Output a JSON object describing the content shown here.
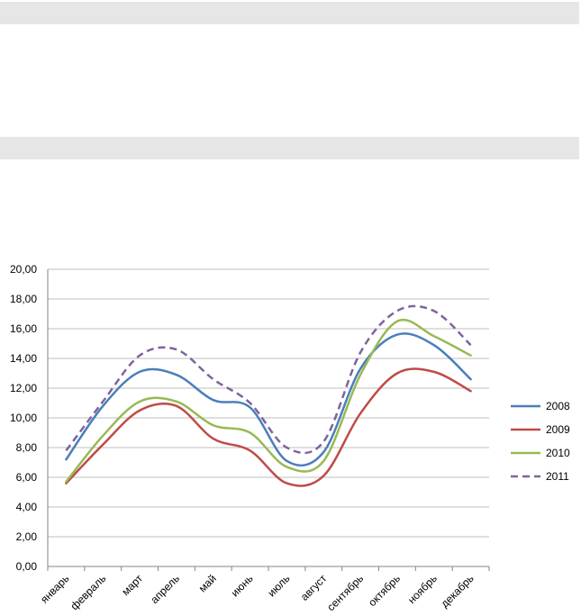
{
  "chart_data": {
    "type": "line",
    "smooth": true,
    "categories": [
      "январь",
      "февраль",
      "март",
      "апрель",
      "май",
      "июнь",
      "июль",
      "август",
      "сентябрь",
      "октябрь",
      "ноябрь",
      "декабрь"
    ],
    "ylim": [
      0,
      20
    ],
    "yticks": [
      "0,00",
      "2,00",
      "4,00",
      "6,00",
      "8,00",
      "10,00",
      "12,00",
      "14,00",
      "16,00",
      "18,00",
      "20,00"
    ],
    "grid": true,
    "legend_position": "right",
    "series": [
      {
        "name": "2008",
        "color": "#4a7ebb",
        "dash": false,
        "values": [
          7.2,
          10.8,
          13.1,
          12.9,
          11.2,
          10.7,
          7.1,
          7.7,
          13.3,
          15.6,
          14.9,
          12.6
        ]
      },
      {
        "name": "2009",
        "color": "#be4b48",
        "dash": false,
        "values": [
          5.6,
          8.2,
          10.5,
          10.8,
          8.6,
          7.8,
          5.6,
          6.1,
          10.3,
          13.0,
          13.1,
          11.8
        ]
      },
      {
        "name": "2010",
        "color": "#98b954",
        "dash": false,
        "values": [
          5.7,
          8.8,
          11.1,
          11.1,
          9.5,
          9.0,
          6.7,
          7.1,
          12.9,
          16.5,
          15.5,
          14.2
        ]
      },
      {
        "name": "2011",
        "color": "#7e649e",
        "dash": true,
        "values": [
          7.8,
          11.1,
          14.2,
          14.6,
          12.6,
          11.0,
          8.0,
          8.4,
          14.4,
          17.2,
          17.2,
          14.9
        ]
      }
    ]
  }
}
